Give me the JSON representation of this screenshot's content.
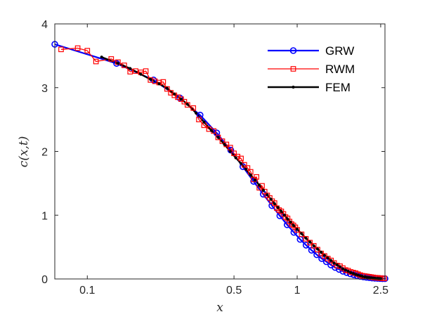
{
  "chart_data": {
    "type": "line",
    "x_scale": "log",
    "xlim": [
      0.07,
      2.62
    ],
    "ylim": [
      0,
      4
    ],
    "xlabel": "x",
    "ylabel": "c(x,t)",
    "x_ticks": [
      {
        "value": 0.1,
        "label": "0.1"
      },
      {
        "value": 0.5,
        "label": "0.5"
      },
      {
        "value": 1,
        "label": "1"
      },
      {
        "value": 2.5,
        "label": "2.5"
      }
    ],
    "y_ticks": [
      {
        "value": 0,
        "label": "0"
      },
      {
        "value": 1,
        "label": "1"
      },
      {
        "value": 2,
        "label": "2"
      },
      {
        "value": 3,
        "label": "3"
      },
      {
        "value": 4,
        "label": "4"
      }
    ],
    "grid": false,
    "legend_position": "top-right",
    "series": [
      {
        "name": "GRW",
        "color": "#0000ff",
        "marker": "circle",
        "x": [
          0.07,
          0.1379,
          0.2068,
          0.2757,
          0.3446,
          0.4135,
          0.4824,
          0.5513,
          0.6202,
          0.6891,
          0.758,
          0.8269,
          0.8958,
          0.9647,
          1.0336,
          1.1025,
          1.1714,
          1.2403,
          1.3092,
          1.3781,
          1.447,
          1.5159,
          1.5848,
          1.6537,
          1.7226,
          1.7915,
          1.8604,
          1.9293,
          1.9982,
          2.0671,
          2.136,
          2.2049,
          2.2738,
          2.3427,
          2.4116,
          2.4805,
          2.5494,
          2.62
        ],
        "y": [
          3.68,
          3.38,
          3.12,
          2.84,
          2.57,
          2.29,
          2.02,
          1.76,
          1.53,
          1.33,
          1.15,
          0.99,
          0.85,
          0.73,
          0.62,
          0.53,
          0.45,
          0.38,
          0.32,
          0.27,
          0.22,
          0.18,
          0.15,
          0.12,
          0.1,
          0.08,
          0.065,
          0.05,
          0.04,
          0.032,
          0.025,
          0.02,
          0.015,
          0.012,
          0.009,
          0.007,
          0.005,
          0.004
        ]
      },
      {
        "name": "RWM",
        "color": "#ff0000",
        "marker": "square",
        "x": [
          0.075,
          0.09,
          0.1,
          0.11,
          0.13,
          0.14,
          0.15,
          0.16,
          0.17,
          0.18,
          0.19,
          0.2,
          0.21,
          0.22,
          0.23,
          0.24,
          0.25,
          0.26,
          0.27,
          0.28,
          0.29,
          0.3,
          0.32,
          0.34,
          0.36,
          0.38,
          0.4,
          0.42,
          0.44,
          0.46,
          0.48,
          0.5,
          0.52,
          0.54,
          0.56,
          0.58,
          0.6,
          0.62,
          0.64,
          0.66,
          0.68,
          0.7,
          0.72,
          0.74,
          0.76,
          0.78,
          0.8,
          0.82,
          0.84,
          0.86,
          0.88,
          0.9,
          0.92,
          0.94,
          0.96,
          0.98,
          1.0,
          1.05,
          1.1,
          1.15,
          1.2,
          1.25,
          1.3,
          1.35,
          1.4,
          1.45,
          1.5,
          1.55,
          1.6,
          1.65,
          1.7,
          1.75,
          1.8,
          1.85,
          1.9,
          1.95,
          2.0,
          2.05,
          2.1,
          2.15,
          2.2,
          2.25,
          2.3,
          2.35,
          2.4,
          2.45,
          2.5,
          2.55,
          2.6
        ],
        "y": [
          3.6,
          3.62,
          3.58,
          3.41,
          3.45,
          3.4,
          3.35,
          3.25,
          3.26,
          3.24,
          3.26,
          3.12,
          3.1,
          3.08,
          3.09,
          2.98,
          2.92,
          2.88,
          2.85,
          2.82,
          2.78,
          2.73,
          2.68,
          2.5,
          2.41,
          2.35,
          2.32,
          2.22,
          2.16,
          2.11,
          2.06,
          1.97,
          1.92,
          1.89,
          1.79,
          1.74,
          1.68,
          1.56,
          1.6,
          1.43,
          1.46,
          1.37,
          1.31,
          1.27,
          1.22,
          1.19,
          1.11,
          1.08,
          1.06,
          1.02,
          0.97,
          0.95,
          0.9,
          0.86,
          0.84,
          0.81,
          0.77,
          0.7,
          0.63,
          0.57,
          0.52,
          0.46,
          0.4,
          0.36,
          0.32,
          0.29,
          0.25,
          0.21,
          0.2,
          0.17,
          0.14,
          0.13,
          0.11,
          0.1,
          0.09,
          0.075,
          0.06,
          0.05,
          0.045,
          0.04,
          0.035,
          0.03,
          0.025,
          0.02,
          0.018,
          0.015,
          0.012,
          0.01,
          0.008
        ]
      },
      {
        "name": "FEM",
        "color": "#000000",
        "marker": "dot",
        "x": [
          0.117,
          0.14,
          0.16,
          0.18,
          0.2,
          0.22,
          0.24,
          0.26,
          0.28,
          0.3,
          0.33,
          0.36,
          0.39,
          0.42,
          0.45,
          0.48,
          0.51,
          0.54,
          0.57,
          0.6,
          0.63,
          0.66,
          0.69,
          0.72,
          0.75,
          0.78,
          0.81,
          0.84,
          0.87,
          0.9,
          0.93,
          0.96,
          1.0,
          1.05,
          1.1,
          1.15,
          1.2,
          1.25,
          1.3,
          1.35,
          1.4,
          1.45,
          1.5,
          1.55,
          1.6,
          1.65,
          1.7,
          1.75,
          1.8,
          1.85,
          1.9,
          1.95,
          2.0,
          2.05,
          2.1,
          2.15,
          2.2,
          2.25,
          2.3,
          2.35,
          2.4,
          2.45,
          2.5
        ],
        "y": [
          3.48,
          3.38,
          3.3,
          3.21,
          3.13,
          3.06,
          2.99,
          2.9,
          2.82,
          2.74,
          2.6,
          2.46,
          2.33,
          2.22,
          2.11,
          2.0,
          1.9,
          1.81,
          1.72,
          1.63,
          1.55,
          1.47,
          1.39,
          1.32,
          1.25,
          1.18,
          1.12,
          1.06,
          1.0,
          0.94,
          0.89,
          0.84,
          0.78,
          0.71,
          0.64,
          0.58,
          0.52,
          0.47,
          0.42,
          0.37,
          0.33,
          0.29,
          0.25,
          0.22,
          0.19,
          0.16,
          0.14,
          0.12,
          0.1,
          0.085,
          0.07,
          0.06,
          0.05,
          0.04,
          0.033,
          0.027,
          0.022,
          0.018,
          0.014,
          0.011,
          0.009,
          0.007,
          0.005
        ]
      }
    ]
  }
}
